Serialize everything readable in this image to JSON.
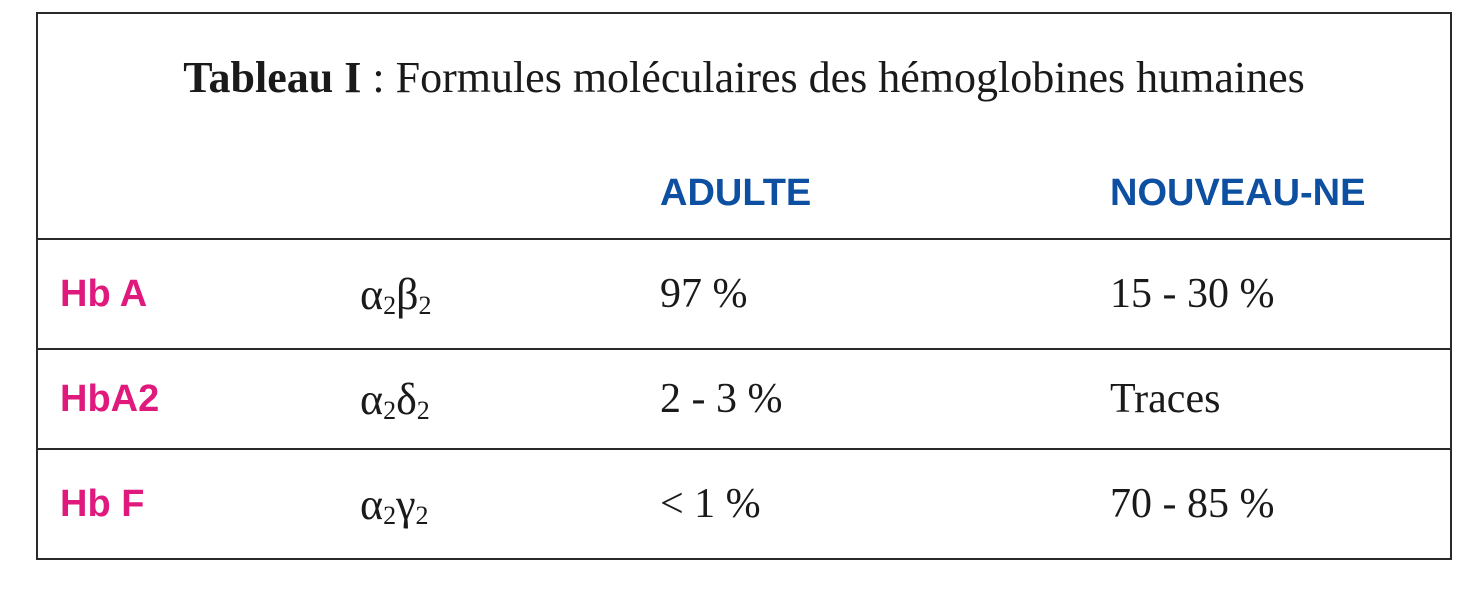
{
  "caption": {
    "label": "Tableau I",
    "separator": " : ",
    "text": "Formules moléculaires des hémoglobines humaines"
  },
  "headers": {
    "adult": "ADULTE",
    "newborn": "NOUVEAU-NE"
  },
  "rows": [
    {
      "name": "Hb A",
      "formula": {
        "a": "α",
        "a_sub": "2",
        "b": "β",
        "b_sub": "2"
      },
      "adult": "97 %",
      "newborn": "15 - 30 %"
    },
    {
      "name": "HbA2",
      "formula": {
        "a": "α",
        "a_sub": "2",
        "b": "δ",
        "b_sub": "2"
      },
      "adult": "2 - 3 %",
      "newborn": "Traces"
    },
    {
      "name": "Hb F",
      "formula": {
        "a": "α",
        "a_sub": "2",
        "b": "γ",
        "b_sub": "2"
      },
      "adult": "< 1 %",
      "newborn": "70 - 85 %"
    }
  ]
}
